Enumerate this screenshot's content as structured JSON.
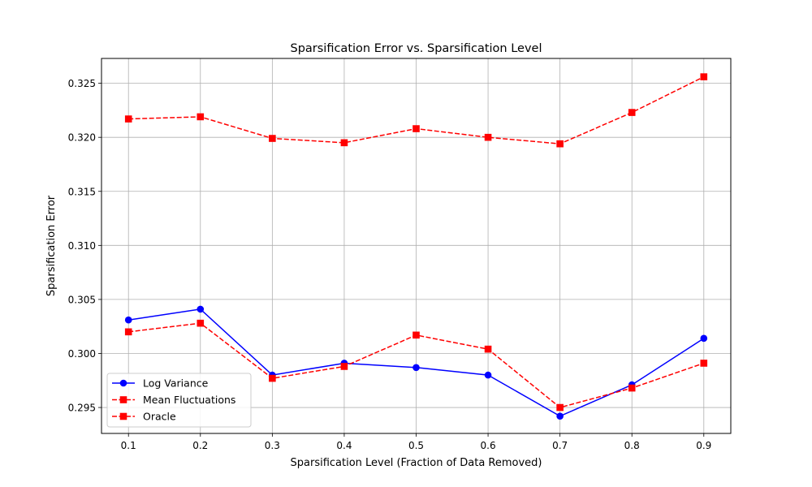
{
  "chart_data": {
    "type": "line",
    "title": "Sparsification Error vs. Sparsification Level",
    "xlabel": "Sparsification Level (Fraction of Data Removed)",
    "ylabel": "Sparsification Error",
    "x": [
      0.1,
      0.2,
      0.3,
      0.4,
      0.5,
      0.6,
      0.7,
      0.8,
      0.9
    ],
    "x_tick_labels": [
      "0.1",
      "0.2",
      "0.3",
      "0.4",
      "0.5",
      "0.6",
      "0.7",
      "0.8",
      "0.9"
    ],
    "y_ticks": [
      0.295,
      0.3,
      0.305,
      0.31,
      0.315,
      0.32,
      0.325
    ],
    "y_tick_labels": [
      "0.295",
      "0.300",
      "0.305",
      "0.310",
      "0.315",
      "0.320",
      "0.325"
    ],
    "xlim": [
      0.0625,
      0.9375
    ],
    "ylim": [
      0.2926,
      0.3273
    ],
    "grid": true,
    "legend_position": "lower-left",
    "series": [
      {
        "name": "Log Variance",
        "color": "#0000ff",
        "linestyle": "solid",
        "marker": "circle",
        "values": [
          0.3031,
          0.3041,
          0.298,
          0.2991,
          0.2987,
          0.298,
          0.2942,
          0.2971,
          0.3014
        ]
      },
      {
        "name": "Mean Fluctuations",
        "color": "#ff0000",
        "linestyle": "dashed",
        "marker": "square",
        "values": [
          0.302,
          0.3028,
          0.2977,
          0.2988,
          0.3017,
          0.3004,
          0.295,
          0.2968,
          0.2991
        ]
      },
      {
        "name": "Oracle",
        "color": "#ff0000",
        "linestyle": "dashed",
        "marker": "square",
        "values": [
          0.3217,
          0.3219,
          0.3199,
          0.3195,
          0.3208,
          0.32,
          0.3194,
          0.3223,
          0.3256
        ]
      }
    ]
  }
}
